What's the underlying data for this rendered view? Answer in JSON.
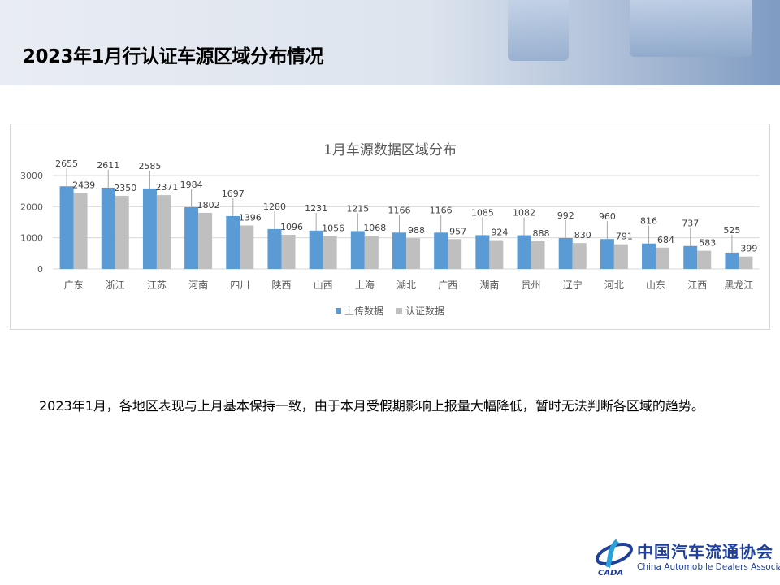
{
  "slide": {
    "title": "2023年1月行认证车源区域分布情况",
    "body_text": "2023年1月，各地区表现与上月基本保持一致，由于本月受假期影响上报量大幅降低，暂时无法判断各区域的趋势。",
    "logo": {
      "cn": "中国汽车流通协会",
      "en": "China Automobile Dealers Association",
      "mark": "CADA"
    }
  },
  "chart_data": {
    "type": "bar",
    "title": "1月车源数据区域分布",
    "categories": [
      "广东",
      "浙江",
      "江苏",
      "河南",
      "四川",
      "陕西",
      "山西",
      "上海",
      "湖北",
      "广西",
      "湖南",
      "贵州",
      "辽宁",
      "河北",
      "山东",
      "江西",
      "黑龙江"
    ],
    "series": [
      {
        "name": "上传数据",
        "color": "#5b9bd5",
        "values": [
          2655,
          2611,
          2585,
          1984,
          1697,
          1280,
          1231,
          1215,
          1166,
          1166,
          1085,
          1082,
          992,
          960,
          816,
          737,
          525
        ]
      },
      {
        "name": "认证数据",
        "color": "#bfbfbf",
        "values": [
          2439,
          2350,
          2371,
          1802,
          1396,
          1096,
          1056,
          1068,
          988,
          957,
          924,
          888,
          830,
          791,
          684,
          583,
          399
        ]
      }
    ],
    "yticks": [
      0,
      1000,
      2000,
      3000
    ],
    "ylim": [
      0,
      3000
    ],
    "grid": true,
    "legend": "bottom"
  }
}
